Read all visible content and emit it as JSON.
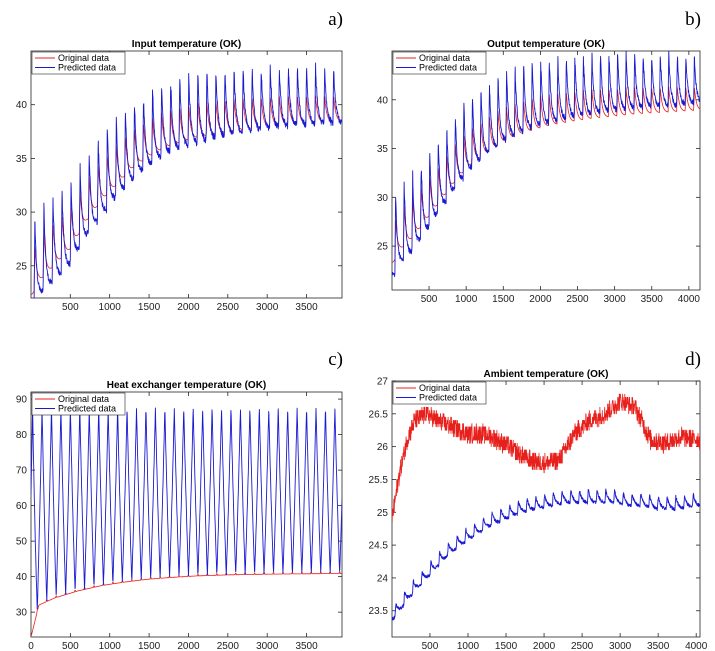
{
  "chart_data": [
    {
      "panel": "a)",
      "type": "line",
      "title": "Input temperature (OK)",
      "xlabel": "",
      "ylabel": "",
      "xlim": [
        1,
        3950
      ],
      "ylim": [
        22,
        45
      ],
      "xticks": [
        500,
        1000,
        1500,
        2000,
        2500,
        3000,
        3500
      ],
      "yticks": [
        25,
        30,
        35,
        40
      ],
      "grid": false,
      "legend_position": "top-left",
      "series": [
        {
          "name": "Original data",
          "color": "#e8201c",
          "x": [
            1,
            100,
            300,
            500,
            700,
            900,
            1100,
            1300,
            1500,
            1700,
            1900,
            2100,
            2400,
            2700,
            3000,
            3300,
            3600,
            3950
          ],
          "y": [
            23,
            24.5,
            26,
            27.5,
            30,
            32,
            33.5,
            35,
            36,
            36.8,
            37.3,
            37.7,
            38.1,
            38.4,
            38.6,
            38.8,
            38.9,
            39
          ]
        },
        {
          "name": "Predicted data",
          "color": "#1a1ad0",
          "x": [
            1,
            100,
            300,
            500,
            700,
            900,
            1100,
            1300,
            1500,
            1700,
            1900,
            2100,
            2400,
            2700,
            3000,
            3300,
            3600,
            3950
          ],
          "y": [
            22.5,
            24,
            25.5,
            27,
            29.5,
            31.5,
            33.3,
            34.8,
            36,
            37,
            37.6,
            38,
            38.5,
            38.8,
            39.1,
            39.3,
            39.4,
            39.5
          ]
        }
      ]
    },
    {
      "panel": "b)",
      "type": "line",
      "title": "Output temperature (OK)",
      "xlabel": "",
      "ylabel": "",
      "xlim": [
        1,
        4150
      ],
      "ylim": [
        20.5,
        45
      ],
      "xticks": [
        500,
        1000,
        1500,
        2000,
        2500,
        3000,
        3500,
        4000
      ],
      "yticks": [
        25,
        30,
        35,
        40
      ],
      "grid": false,
      "legend_position": "top-left",
      "series": [
        {
          "name": "Original data",
          "color": "#e8201c",
          "x": [
            1,
            100,
            300,
            500,
            700,
            900,
            1100,
            1300,
            1500,
            1700,
            1900,
            2100,
            2400,
            2700,
            3000,
            3300,
            3600,
            4150
          ],
          "y": [
            24,
            25.5,
            27,
            29,
            31,
            33,
            34.5,
            35.5,
            36.5,
            37.2,
            37.7,
            38.1,
            38.5,
            38.8,
            39,
            39.2,
            39.3,
            39.5
          ]
        },
        {
          "name": "Predicted data",
          "color": "#1a1ad0",
          "x": [
            1,
            100,
            300,
            500,
            700,
            900,
            1100,
            1300,
            1500,
            1700,
            1900,
            2100,
            2400,
            2700,
            3000,
            3300,
            3600,
            4150
          ],
          "y": [
            23.5,
            25,
            26.5,
            28.8,
            31,
            33.2,
            35,
            36.3,
            37.4,
            38.2,
            38.8,
            39.2,
            39.7,
            40,
            40.3,
            40.5,
            40.6,
            40.8
          ]
        }
      ]
    },
    {
      "panel": "c)",
      "type": "line",
      "title": "Heat exchanger temperature (OK)",
      "xlabel": "",
      "ylabel": "",
      "xlim": [
        0,
        3950
      ],
      "ylim": [
        23,
        92
      ],
      "xticks": [
        0,
        500,
        1000,
        1500,
        2000,
        2500,
        3000,
        3500
      ],
      "yticks": [
        30,
        40,
        50,
        60,
        70,
        80,
        90
      ],
      "grid": false,
      "legend_position": "top-left",
      "series": [
        {
          "name": "Original data",
          "color": "#e8201c",
          "x": [
            0,
            100,
            300,
            600,
            900,
            1200,
            1500,
            1800,
            2100,
            2500,
            3000,
            3500,
            3950
          ],
          "y": [
            23,
            32,
            34,
            36,
            37.5,
            38.5,
            39.3,
            39.8,
            40.2,
            40.5,
            40.7,
            40.8,
            40.9
          ]
        },
        {
          "name": "Predicted data",
          "color": "#1a1ad0",
          "x": [
            0,
            3950
          ],
          "y": [
            87.5,
            87.5
          ]
        }
      ]
    },
    {
      "panel": "d)",
      "type": "line",
      "title": "Ambient temperature (OK)",
      "xlabel": "",
      "ylabel": "",
      "xlim": [
        1,
        4050
      ],
      "ylim": [
        23.1,
        27
      ],
      "xticks": [
        500,
        1000,
        1500,
        2000,
        2500,
        3000,
        3500,
        4000
      ],
      "yticks": [
        23.5,
        24,
        24.5,
        25,
        25.5,
        26,
        26.5,
        27
      ],
      "grid": false,
      "legend_position": "top-left",
      "series": [
        {
          "name": "Original data",
          "color": "#e8201c",
          "x": [
            1,
            100,
            200,
            300,
            450,
            600,
            800,
            1000,
            1200,
            1400,
            1600,
            1800,
            2000,
            2200,
            2400,
            2600,
            2800,
            3000,
            3200,
            3400,
            3600,
            3800,
            4050
          ],
          "y": [
            24.9,
            25.6,
            26.1,
            26.4,
            26.5,
            26.4,
            26.3,
            26.2,
            26.2,
            26.1,
            25.95,
            25.8,
            25.75,
            25.8,
            26.2,
            26.4,
            26.5,
            26.7,
            26.6,
            26.1,
            26.05,
            26.15,
            26.1
          ]
        },
        {
          "name": "Predicted data",
          "color": "#1a1ad0",
          "x": [
            1,
            100,
            300,
            500,
            700,
            900,
            1100,
            1300,
            1500,
            1700,
            1900,
            2100,
            2300,
            2500,
            2700,
            2900,
            3100,
            3300,
            3500,
            3700,
            4050
          ],
          "y": [
            23.4,
            23.55,
            23.85,
            24.1,
            24.35,
            24.55,
            24.7,
            24.85,
            24.95,
            25.05,
            25.1,
            25.15,
            25.2,
            25.2,
            25.2,
            25.2,
            25.15,
            25.15,
            25.1,
            25.1,
            25.15
          ]
        }
      ]
    }
  ]
}
